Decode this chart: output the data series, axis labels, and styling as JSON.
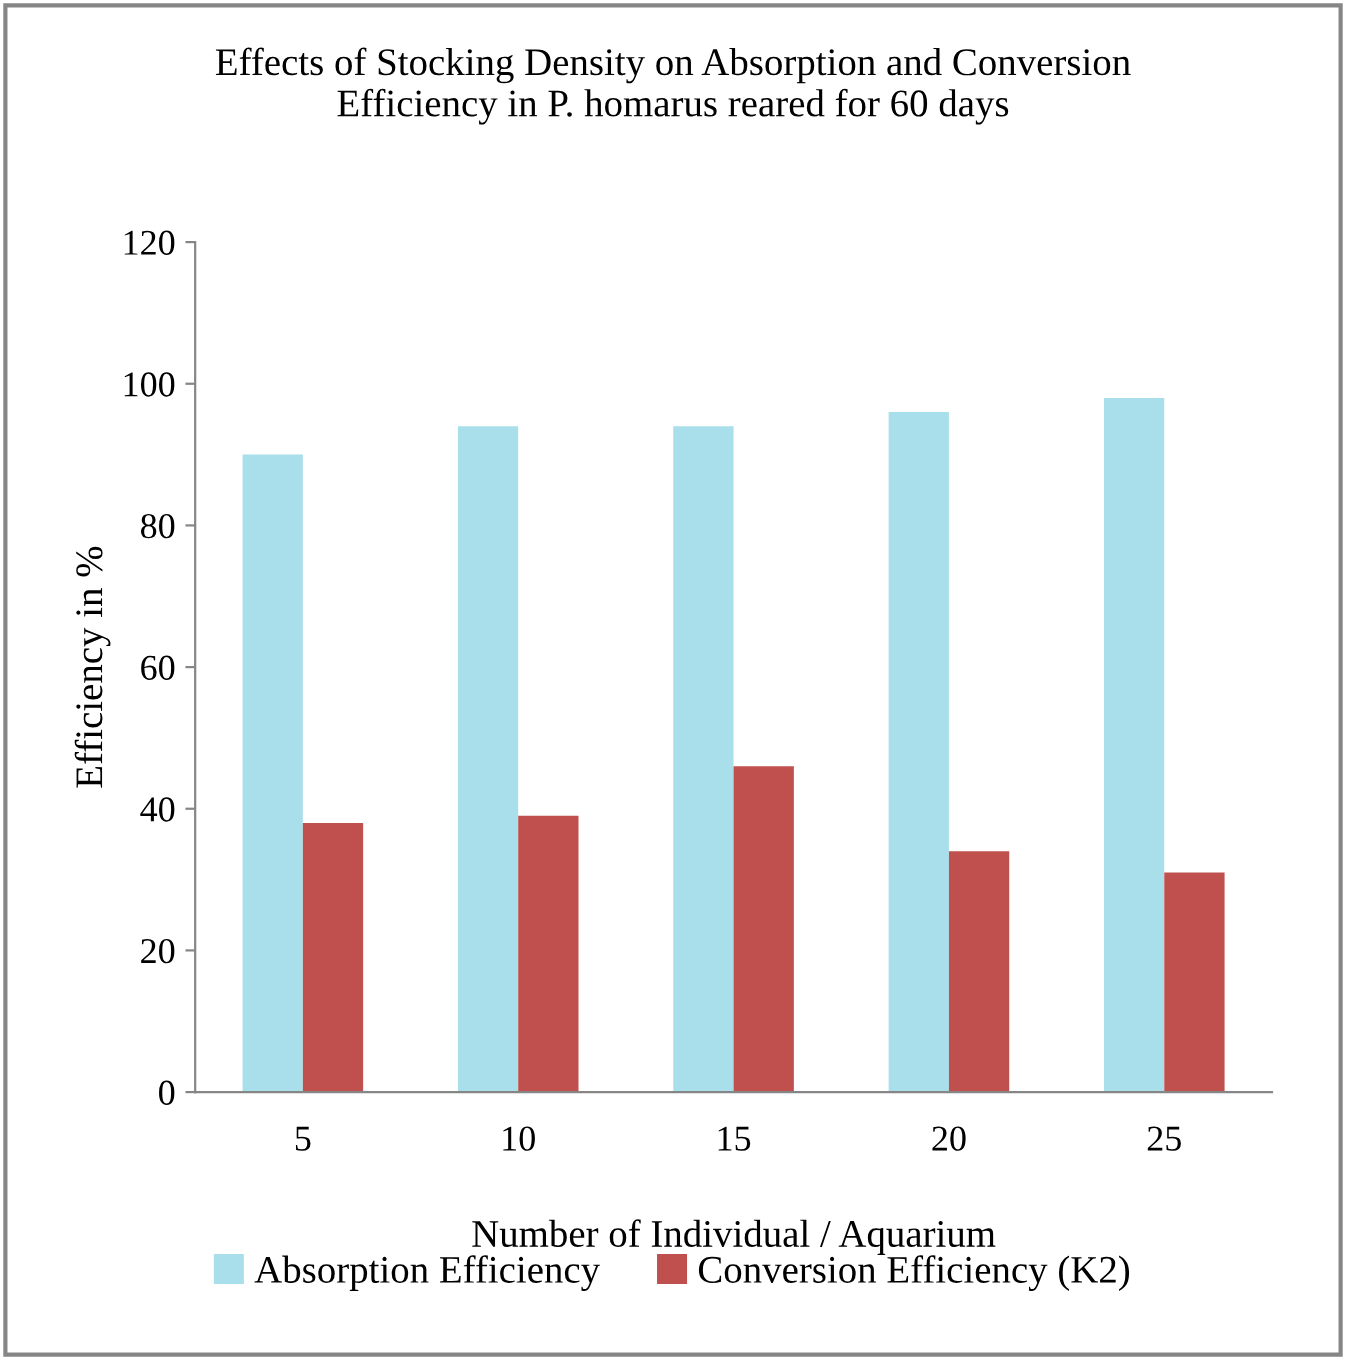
{
  "chart_data": {
    "type": "bar",
    "title": "Effects of Stocking Density on Absorption and Conversion\nEfficiency in P. homarus reared for 60 days",
    "xlabel": "Number of Individual / Aquarium",
    "ylabel": "Efficiency in %",
    "categories": [
      "5",
      "10",
      "15",
      "20",
      "25"
    ],
    "series": [
      {
        "name": "Absorption Efficiency",
        "color": "#a9dfea",
        "values": [
          90,
          94,
          94,
          96,
          98
        ]
      },
      {
        "name": "Conversion Efficiency (K2)",
        "color": "#c0504d",
        "values": [
          38,
          39,
          46,
          34,
          31
        ]
      }
    ],
    "ylim": [
      0,
      120
    ],
    "yticks": [
      0,
      20,
      40,
      60,
      80,
      100,
      120
    ],
    "grid": false,
    "legend": "bottom"
  }
}
